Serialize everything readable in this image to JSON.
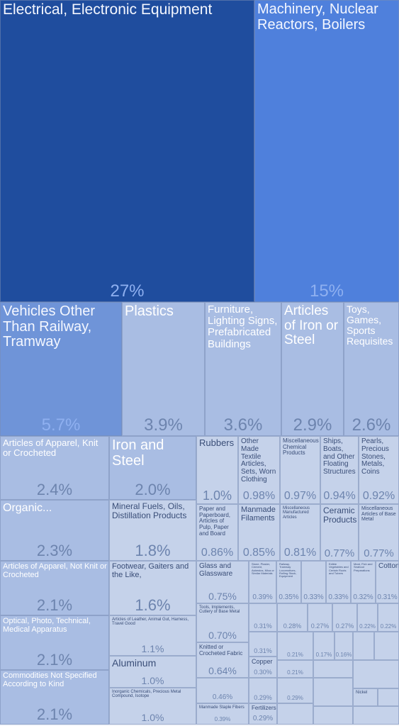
{
  "colors": {
    "primary": "#1f4d9e",
    "secondary": "#4f80dc",
    "mid": "#6f94d8",
    "light": "#a9bde3",
    "pale": "#c5d2ea",
    "label_light": "#f4f7ff",
    "label_dark": "#3a4e78",
    "pct_light": "#8fb0f0",
    "pct_dark": "#6d84ae"
  },
  "chart_data": {
    "type": "treemap",
    "title": "",
    "unit": "%",
    "items": [
      {
        "label": "Electrical, Electronic Equipment",
        "value": 27,
        "pct_label": "27%"
      },
      {
        "label": "Machinery, Nuclear Reactors, Boilers",
        "value": 15,
        "pct_label": "15%"
      },
      {
        "label": "Vehicles Other Than Railway, Tramway",
        "value": 5.7,
        "pct_label": "5.7%"
      },
      {
        "label": "Plastics",
        "value": 3.9,
        "pct_label": "3.9%"
      },
      {
        "label": "Furniture, Lighting Signs, Prefabricated Buildings",
        "value": 3.6,
        "pct_label": "3.6%"
      },
      {
        "label": "Articles of Iron or Steel",
        "value": 2.9,
        "pct_label": "2.9%"
      },
      {
        "label": "Toys, Games, Sports Requisites",
        "value": 2.6,
        "pct_label": "2.6%"
      },
      {
        "label": "Articles of Apparel, Knit or Crocheted",
        "value": 2.4,
        "pct_label": "2.4%"
      },
      {
        "label": "Iron and Steel",
        "value": 2.0,
        "pct_label": "2.0%"
      },
      {
        "label": "Rubbers",
        "value": 1.0,
        "pct_label": "1.0%"
      },
      {
        "label": "Other Made Textile Articles, Sets, Worn Clothing",
        "value": 0.98,
        "pct_label": "0.98%"
      },
      {
        "label": "Miscellaneous Chemical Products",
        "value": 0.97,
        "pct_label": "0.97%"
      },
      {
        "label": "Ships, Boats, and Other Floating Structures",
        "value": 0.94,
        "pct_label": "0.94%"
      },
      {
        "label": "Pearls, Precious Stones, Metals, Coins",
        "value": 0.92,
        "pct_label": "0.92%"
      },
      {
        "label": "Organic...",
        "value": 2.3,
        "pct_label": "2.3%"
      },
      {
        "label": "Mineral Fuels, Oils, Distillation Products",
        "value": 1.8,
        "pct_label": "1.8%"
      },
      {
        "label": "Paper and Paperboard, Articles of Pulp, Paper and Board",
        "value": 0.86,
        "pct_label": "0.86%"
      },
      {
        "label": "Manmade Filaments",
        "value": 0.85,
        "pct_label": "0.85%"
      },
      {
        "label": "Miscellaneous Manufactured Articles",
        "value": 0.81,
        "pct_label": "0.81%"
      },
      {
        "label": "Ceramic Products",
        "value": 0.77,
        "pct_label": "0.77%"
      },
      {
        "label": "Miscellaneous Articles of Base Metal",
        "value": 0.77,
        "pct_label": "0.77%"
      },
      {
        "label": "Articles of Apparel, Not Knit or Crocheted",
        "value": 2.1,
        "pct_label": "2.1%"
      },
      {
        "label": "Footwear, Gaiters and the Like,",
        "value": 1.6,
        "pct_label": "1.6%"
      },
      {
        "label": "Glass and Glassware",
        "value": 0.75,
        "pct_label": "0.75%"
      },
      {
        "label": "Stone, Plaster, Cement, Asbestos, Mica or Similar Materials",
        "value": 0.39,
        "pct_label": "0.39%"
      },
      {
        "label": "Railway, Tramway Locomotives, Rolling Stock, Equipment",
        "value": 0.35,
        "pct_label": "0.35%"
      },
      {
        "label": "",
        "value": 0.33,
        "pct_label": "0.33%"
      },
      {
        "label": "Edible Vegetables and Certain Roots and Tubers",
        "value": 0.33,
        "pct_label": "0.33%"
      },
      {
        "label": "Meat, Fish and Seafood Preparations",
        "value": 0.32,
        "pct_label": "0.32%"
      },
      {
        "label": "Cotton",
        "value": 0.31,
        "pct_label": "0.31%"
      },
      {
        "label": "Optical, Photo, Technical, Medical Apparatus",
        "value": 2.1,
        "pct_label": "2.1%"
      },
      {
        "label": "Articles of Leather, Animal Gut, Harness, Travel Good",
        "value": 1.1,
        "pct_label": "1.1%"
      },
      {
        "label": "Tools, Implements, Cutlery of Base Metal",
        "value": 0.7,
        "pct_label": "0.70%"
      },
      {
        "label": "",
        "value": 0.31,
        "pct_label": "0.31%"
      },
      {
        "label": "",
        "value": 0.28,
        "pct_label": "0.28%"
      },
      {
        "label": "",
        "value": 0.27,
        "pct_label": "0.27%"
      },
      {
        "label": "",
        "value": 0.27,
        "pct_label": "0.27%"
      },
      {
        "label": "",
        "value": 0.22,
        "pct_label": "0.22%"
      },
      {
        "label": "",
        "value": 0.22,
        "pct_label": "0.22%"
      },
      {
        "label": "Commodities Not Specified According to Kind",
        "value": 2.1,
        "pct_label": "2.1%"
      },
      {
        "label": "Aluminum",
        "value": 1.0,
        "pct_label": "1.0%"
      },
      {
        "label": "Knitted or Crocheted Fabric",
        "value": 0.64,
        "pct_label": "0.64%"
      },
      {
        "label": "",
        "value": 0.31,
        "pct_label": "0.31%"
      },
      {
        "label": "Copper",
        "value": 0.3,
        "pct_label": "0.30%"
      },
      {
        "label": "",
        "value": 0.21,
        "pct_label": "0.21%"
      },
      {
        "label": "",
        "value": 0.21,
        "pct_label": "0.21%"
      },
      {
        "label": "",
        "value": 0.17,
        "pct_label": "0.17%"
      },
      {
        "label": "",
        "value": 0.16,
        "pct_label": "0.16%"
      },
      {
        "label": "Inorganic Chemicals, Precious Metal Compound, Isotope",
        "value": 1.0,
        "pct_label": "1.0%"
      },
      {
        "label": "",
        "value": 0.46,
        "pct_label": "0.46%"
      },
      {
        "label": "",
        "value": 0.29,
        "pct_label": "0.29%"
      },
      {
        "label": "",
        "value": 0.29,
        "pct_label": "0.29%"
      },
      {
        "label": "Fertilizers",
        "value": 0.29,
        "pct_label": "0.29%"
      },
      {
        "label": "Manmade Staple Fibers",
        "value": 0.39,
        "pct_label": "0.39%"
      },
      {
        "label": "Nickel",
        "value": null,
        "pct_label": ""
      }
    ]
  }
}
